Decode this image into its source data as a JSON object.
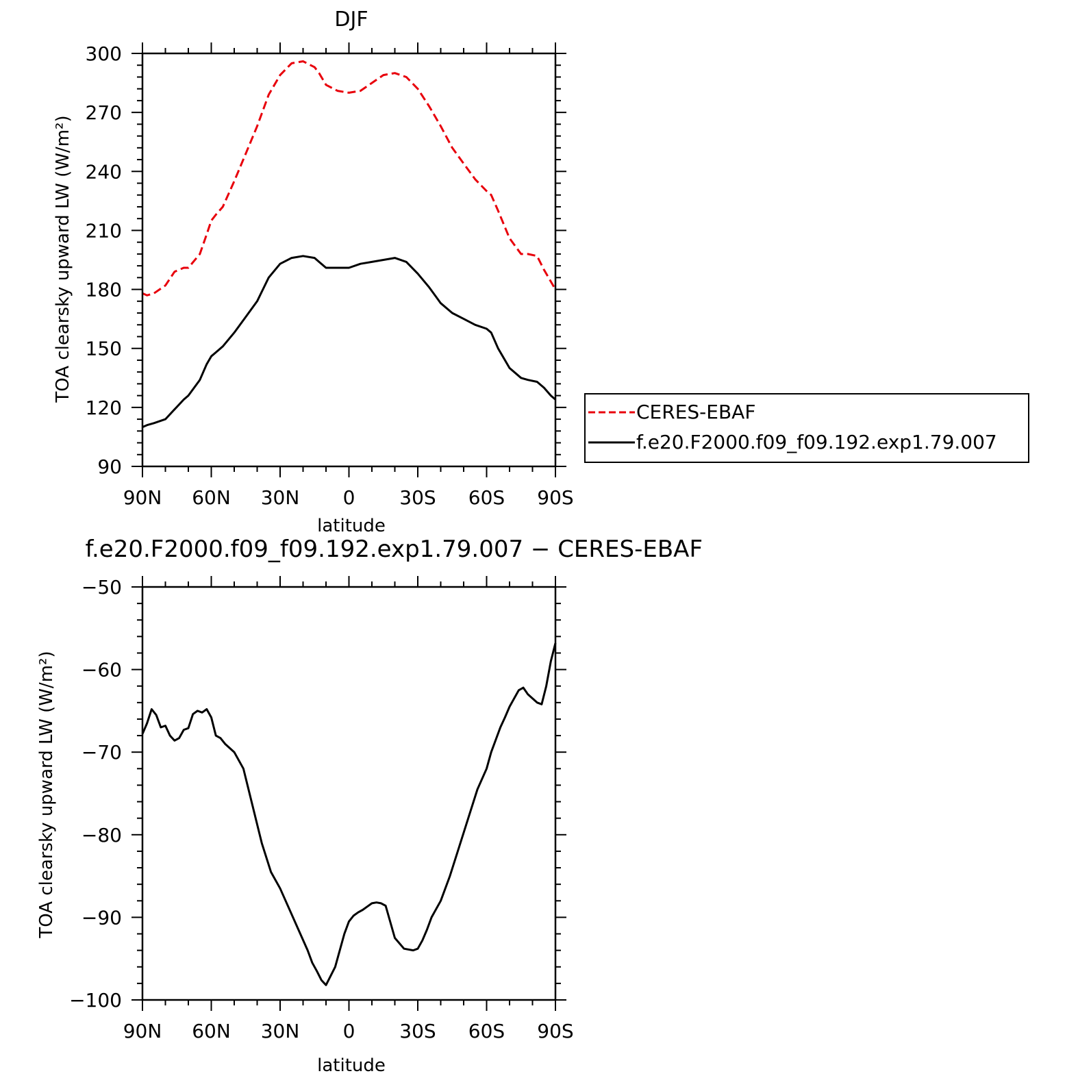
{
  "chart_data": [
    {
      "type": "line",
      "title": "DJF",
      "xlabel": "latitude",
      "ylabel": "TOA clearsky upward LW (W/m²)",
      "xlim": [
        90,
        -90
      ],
      "ylim": [
        90,
        300
      ],
      "xticks": [
        90,
        60,
        30,
        0,
        -30,
        -60,
        -90
      ],
      "xticklabels": [
        "90N",
        "60N",
        "30N",
        "0",
        "30S",
        "60S",
        "90S"
      ],
      "yticks": [
        90,
        120,
        150,
        180,
        210,
        240,
        270,
        300
      ],
      "yticklabels": [
        "90",
        "120",
        "150",
        "180",
        "210",
        "240",
        "270",
        "300"
      ],
      "legend": "right",
      "series": [
        {
          "name": "CERES-EBAF",
          "color": "#e8000b",
          "dash": "dashed",
          "x": [
            90,
            88,
            85,
            80,
            76,
            72,
            70,
            65,
            62,
            60,
            58,
            55,
            50,
            45,
            40,
            35,
            30,
            25,
            20,
            15,
            13,
            10,
            5,
            0,
            -5,
            -10,
            -15,
            -20,
            -25,
            -30,
            -35,
            -40,
            -45,
            -50,
            -55,
            -60,
            -62,
            -65,
            -70,
            -75,
            -78,
            -82,
            -85,
            -88,
            -90
          ],
          "y": [
            178,
            177,
            178,
            182,
            189,
            191,
            191,
            198,
            208,
            215,
            218,
            222,
            235,
            249,
            263,
            279,
            289,
            295,
            296,
            293,
            290,
            284,
            281,
            280,
            281,
            285,
            289,
            290,
            288,
            282,
            273,
            263,
            252,
            244,
            236,
            230,
            228,
            220,
            206,
            198,
            198,
            197,
            190,
            184,
            180
          ]
        },
        {
          "name": "f.e20.F2000.f09_f09.192.exp1.79.007",
          "color": "#000000",
          "dash": "solid",
          "x": [
            90,
            88,
            85,
            80,
            76,
            72,
            70,
            65,
            62,
            60,
            58,
            55,
            50,
            45,
            40,
            35,
            30,
            25,
            20,
            15,
            13,
            10,
            5,
            0,
            -5,
            -10,
            -15,
            -20,
            -25,
            -30,
            -35,
            -40,
            -45,
            -50,
            -55,
            -60,
            -62,
            -65,
            -70,
            -75,
            -78,
            -82,
            -85,
            -88,
            -90
          ],
          "y": [
            110,
            111,
            112,
            114,
            119,
            124,
            126,
            134,
            142,
            146,
            148,
            151,
            158,
            166,
            174,
            186,
            193,
            196,
            197,
            196,
            194,
            191,
            191,
            191,
            193,
            194,
            195,
            196,
            194,
            188,
            181,
            173,
            168,
            165,
            162,
            160,
            158,
            150,
            140,
            135,
            134,
            133,
            130,
            126,
            124
          ]
        }
      ]
    },
    {
      "type": "line",
      "title": "f.e20.F2000.f09_f09.192.exp1.79.007 − CERES-EBAF",
      "xlabel": "latitude",
      "ylabel": "TOA clearsky upward LW (W/m²)",
      "xlim": [
        90,
        -90
      ],
      "ylim": [
        -100,
        -50
      ],
      "xticks": [
        90,
        60,
        30,
        0,
        -30,
        -60,
        -90
      ],
      "xticklabels": [
        "90N",
        "60N",
        "30N",
        "0",
        "30S",
        "60S",
        "90S"
      ],
      "yticks": [
        -100,
        -90,
        -80,
        -70,
        -60,
        -50
      ],
      "yticklabels": [
        "−100",
        "−90",
        "−80",
        "−70",
        "−60",
        "−50"
      ],
      "series": [
        {
          "color": "#000000",
          "dash": "solid",
          "x": [
            90,
            88,
            86,
            84,
            82,
            80,
            78,
            76,
            74,
            72,
            70,
            68,
            66,
            64,
            62,
            60,
            58,
            56,
            54,
            50,
            46,
            42,
            38,
            34,
            30,
            26,
            22,
            18,
            16,
            14,
            12,
            10,
            6,
            2,
            0,
            -2,
            -4,
            -6,
            -8,
            -10,
            -12,
            -14,
            -16,
            -20,
            -24,
            -28,
            -30,
            -32,
            -34,
            -36,
            -40,
            -44,
            -48,
            -52,
            -56,
            -60,
            -62,
            -64,
            -66,
            -68,
            -70,
            -72,
            -74,
            -76,
            -78,
            -80,
            -82,
            -84,
            -86,
            -88,
            -90
          ],
          "y": [
            -67.8,
            -66.5,
            -64.8,
            -65.5,
            -67.0,
            -66.8,
            -68.0,
            -68.6,
            -68.3,
            -67.3,
            -67.1,
            -65.4,
            -65.0,
            -65.2,
            -64.8,
            -65.8,
            -68.0,
            -68.3,
            -69.0,
            -70.0,
            -72.0,
            -76.5,
            -81.0,
            -84.5,
            -86.5,
            -89.0,
            -91.5,
            -94.0,
            -95.5,
            -96.5,
            -97.6,
            -98.2,
            -96.0,
            -92.0,
            -90.5,
            -89.8,
            -89.4,
            -89.1,
            -88.7,
            -88.3,
            -88.2,
            -88.3,
            -88.6,
            -92.5,
            -93.8,
            -94.0,
            -93.8,
            -92.8,
            -91.5,
            -90.0,
            -88.0,
            -85.0,
            -81.5,
            -78.0,
            -74.5,
            -72.0,
            -70.0,
            -68.5,
            -67.0,
            -65.8,
            -64.5,
            -63.5,
            -62.5,
            -62.2,
            -63.0,
            -63.5,
            -64.0,
            -64.2,
            -62.0,
            -59.0,
            -56.8
          ]
        }
      ]
    }
  ]
}
